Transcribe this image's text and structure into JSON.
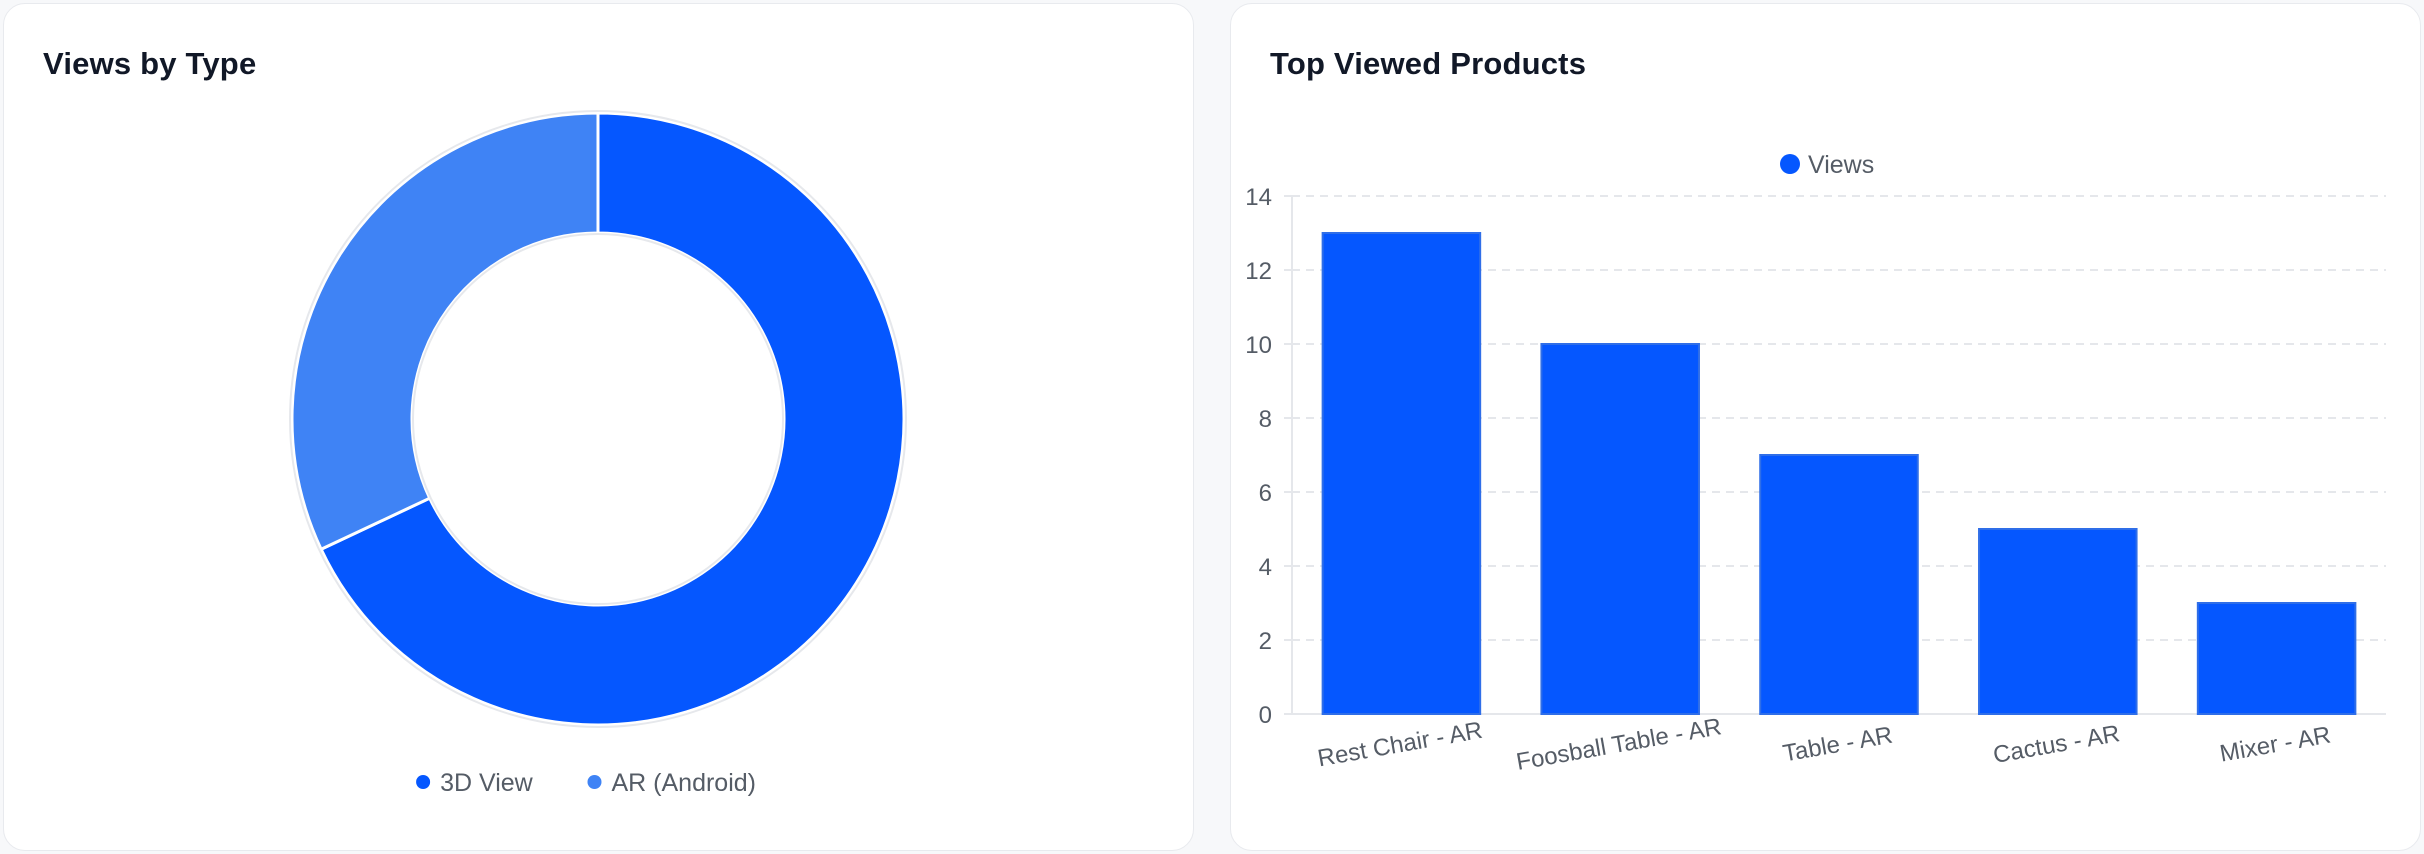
{
  "colors": {
    "primary": "#0557ff",
    "secondary": "#3f83f5",
    "grid": "#e5e7eb",
    "text": "#555c66"
  },
  "donut": {
    "title": "Views by Type",
    "chart_data": {
      "type": "pie",
      "title": "Views by Type",
      "labels": [
        "3D View",
        "AR (Android)"
      ],
      "values": [
        68,
        32
      ],
      "legend": "bottom"
    }
  },
  "bar": {
    "title": "Top Viewed Products",
    "chart_data": {
      "type": "bar",
      "title": "Top Viewed Products",
      "categories": [
        "Rest Chair - AR",
        "Foosball Table - AR",
        "Table - AR",
        "Cactus - AR",
        "Mixer - AR"
      ],
      "series": [
        {
          "name": "Views",
          "values": [
            13,
            10,
            7,
            5,
            3
          ]
        }
      ],
      "ylim": [
        0,
        14
      ],
      "yticks": [
        0,
        2,
        4,
        6,
        8,
        10,
        12,
        14
      ],
      "grid": true,
      "legend": "top"
    }
  }
}
